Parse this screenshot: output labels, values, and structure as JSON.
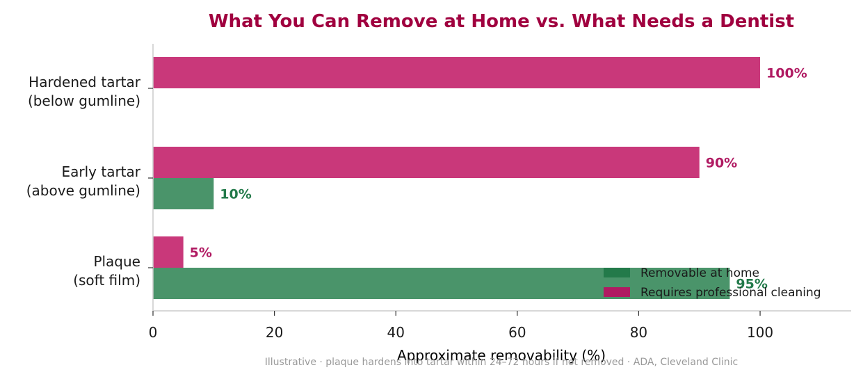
{
  "chart_data": {
    "type": "bar",
    "orientation": "horizontal",
    "title": "What You Can Remove at Home vs. What Needs a Dentist",
    "xlabel": "Approximate removability (%)",
    "ylabel": "",
    "xlim": [
      0,
      115
    ],
    "xticks": [
      0,
      20,
      40,
      60,
      80,
      100
    ],
    "categories": [
      [
        "Plaque",
        "(soft film)"
      ],
      [
        "Early tartar",
        "(above gumline)"
      ],
      [
        "Hardened tartar",
        "(below gumline)"
      ]
    ],
    "series": [
      {
        "name": "Removable at home",
        "values": [
          95,
          10,
          0
        ],
        "labels": [
          "95%",
          "10%",
          ""
        ],
        "color": "#4a946a",
        "label_color": "#237a4a"
      },
      {
        "name": "Requires professional cleaning",
        "values": [
          5,
          90,
          100
        ],
        "labels": [
          "5%",
          "90%",
          "100%"
        ],
        "color": "#c9387a",
        "label_color": "#b01a62"
      }
    ],
    "legend": "bottom-right",
    "legend_swatch_colors": [
      "#237a4a",
      "#b01a62"
    ],
    "grid": false,
    "caption": "Illustrative · plaque hardens into tartar within 24–72 hours if not removed · ADA, Cleveland Clinic"
  },
  "colors": {
    "title": "#a0003f",
    "axis": "#cccccc"
  }
}
